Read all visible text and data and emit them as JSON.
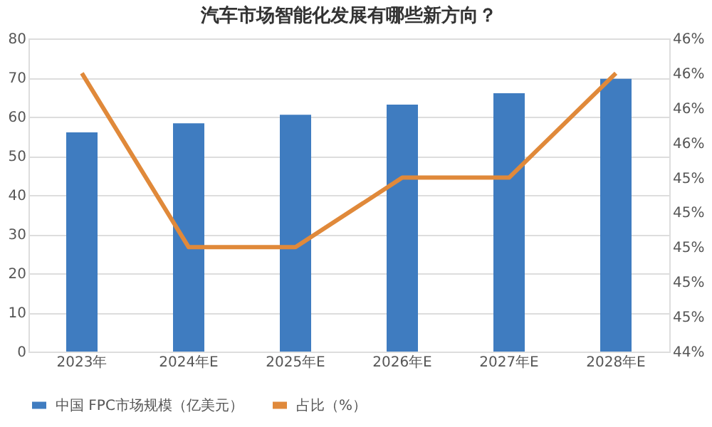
{
  "chart_data": {
    "type": "bar",
    "title": "汽车市场智能化发展有哪些新方向？",
    "categories": [
      "2023年",
      "2024年E",
      "2025年E",
      "2026年E",
      "2027年E",
      "2028年E"
    ],
    "series": [
      {
        "name": "中国 FPC市场规模（亿美元）",
        "color": "#3f7cc0",
        "values": [
          56,
          58.3,
          60.5,
          63.1,
          66,
          69.7
        ]
      },
      {
        "name": "占比（%）",
        "type": "line",
        "axis": "y2",
        "color": "#e0893a",
        "values": [
          46.0,
          45.0,
          45.0,
          45.4,
          45.4,
          46.0
        ]
      }
    ],
    "ylim": [
      0,
      80
    ],
    "yticks": [
      0,
      10,
      20,
      30,
      40,
      50,
      60,
      70,
      80
    ],
    "y2lim": [
      44.4,
      46.2
    ],
    "y2ticks": [
      {
        "value": 44.4,
        "label": "44%"
      },
      {
        "value": 44.6,
        "label": "45%"
      },
      {
        "value": 44.8,
        "label": "45%"
      },
      {
        "value": 45.0,
        "label": "45%"
      },
      {
        "value": 45.2,
        "label": "45%"
      },
      {
        "value": 45.4,
        "label": "45%"
      },
      {
        "value": 45.6,
        "label": "46%"
      },
      {
        "value": 45.8,
        "label": "46%"
      },
      {
        "value": 46.0,
        "label": "46%"
      },
      {
        "value": 46.2,
        "label": "46%"
      }
    ],
    "grid": "y",
    "legend": "bottom",
    "marker": "none",
    "line_style": "solid"
  }
}
